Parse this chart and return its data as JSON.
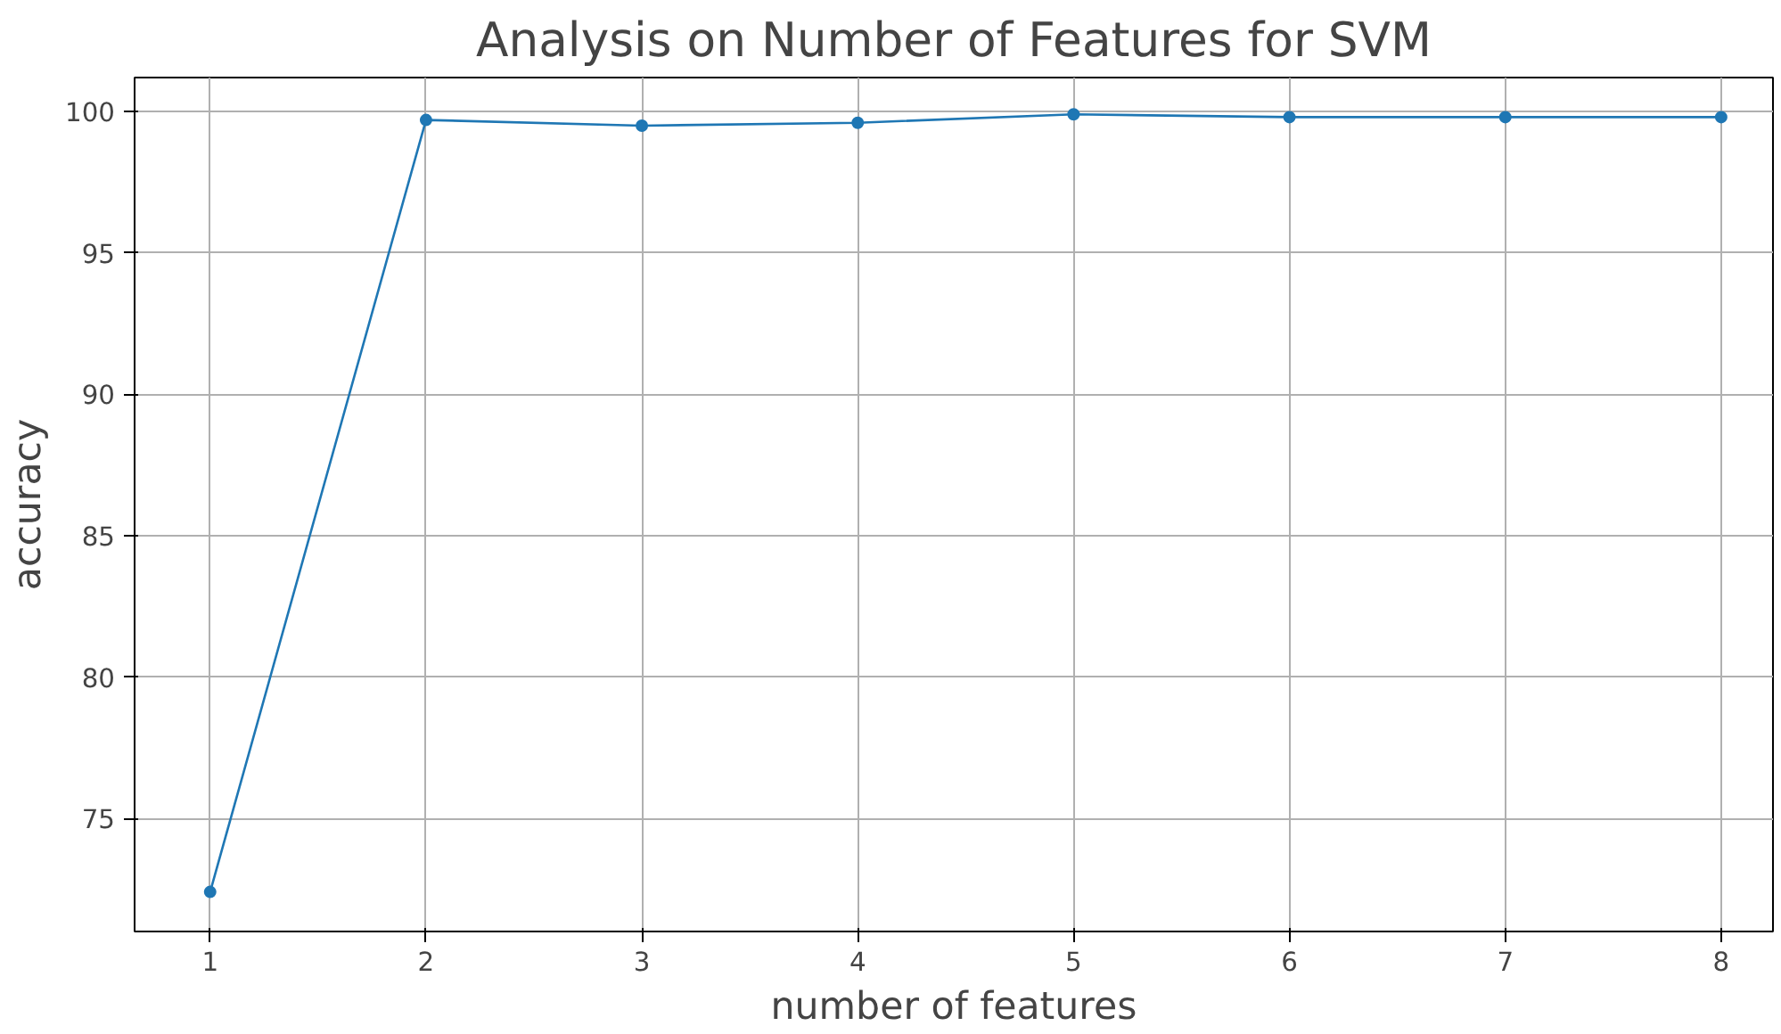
{
  "chart_data": {
    "type": "line",
    "title": "Analysis on Number of Features for SVM",
    "xlabel": "number of features",
    "ylabel": "accuracy",
    "x": [
      1,
      2,
      3,
      4,
      5,
      6,
      7,
      8
    ],
    "series": [
      {
        "color": "#1f77b4",
        "values": [
          72.4,
          99.7,
          99.5,
          99.6,
          99.9,
          99.8,
          99.8,
          99.8
        ]
      }
    ],
    "xlim": [
      0.65,
      8.24
    ],
    "xticks": [
      1,
      2,
      3,
      4,
      5,
      6,
      7,
      8
    ],
    "ylim": [
      71.0,
      101.2
    ],
    "yticks": [
      75,
      80,
      85,
      90,
      95,
      100
    ],
    "grid": true,
    "marker": "circle",
    "line_style": "solid"
  }
}
